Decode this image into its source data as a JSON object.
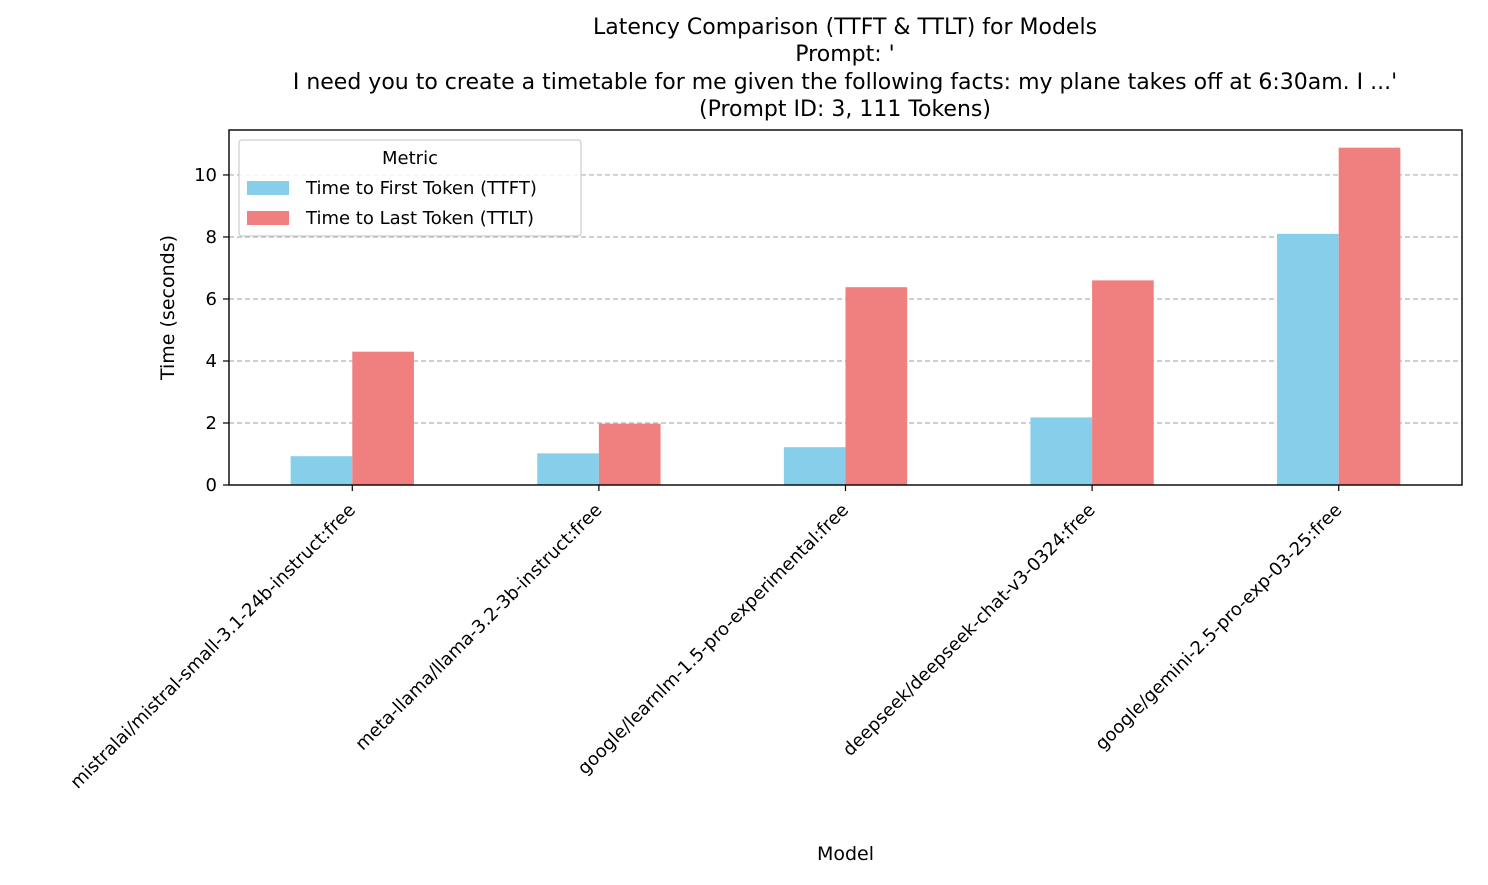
{
  "chart_data": {
    "type": "bar",
    "title_lines": [
      "Latency Comparison (TTFT & TTLT) for Models",
      "Prompt: '",
      "I need you to create a timetable for me given the following facts: my plane takes off at 6:30am. I ...'",
      "(Prompt ID: 3, 111 Tokens)"
    ],
    "xlabel": "Model",
    "ylabel": "Time (seconds)",
    "ylim": [
      0,
      11.45
    ],
    "yticks": [
      0,
      2,
      4,
      6,
      8,
      10
    ],
    "grid": "y-dashed",
    "legend": {
      "title": "Metric",
      "placement": "top-left"
    },
    "categories": [
      "mistralai/mistral-small-3.1-24b-instruct:free",
      "meta-llama/llama-3.2-3b-instruct:free",
      "google/learnlm-1.5-pro-experimental:free",
      "deepseek/deepseek-chat-v3-0324:free",
      "google/gemini-2.5-pro-exp-03-25:free"
    ],
    "series": [
      {
        "name": "Time to First Token (TTFT)",
        "color": "#87ceeb",
        "values": [
          0.93,
          1.02,
          1.22,
          2.18,
          8.1
        ]
      },
      {
        "name": "Time to Last Token (TTLT)",
        "color": "#f08080",
        "values": [
          4.3,
          1.98,
          6.38,
          6.6,
          10.88
        ]
      }
    ]
  }
}
